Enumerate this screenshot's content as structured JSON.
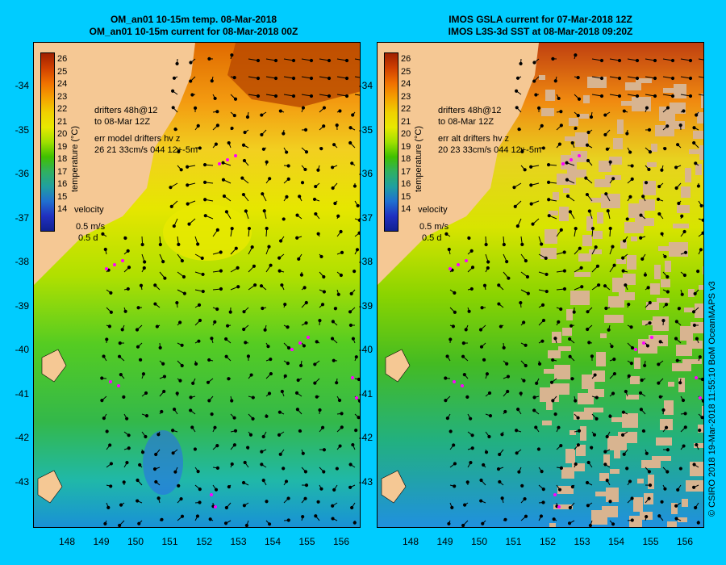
{
  "left_panel": {
    "title_line1": "OM_an01 10-15m temp. 08-Mar-2018",
    "title_line2": "OM_an01 10-15m current for 08-Mar-2018 00Z",
    "legend": {
      "drifters": "drifters 48h@12",
      "date": "to 08-Mar 12Z",
      "err_label": "err model drifters hv z",
      "err_values": "26 21 33cm/s 044 12+-5m"
    }
  },
  "right_panel": {
    "title_line1": "IMOS GSLA current for 07-Mar-2018 12Z",
    "title_line2": "IMOS L3S-3d SST at 08-Mar-2018 09:20Z",
    "legend": {
      "drifters": "drifters 48h@12",
      "date": "to 08-Mar 12Z",
      "err_label": "err alt drifters hv z",
      "err_values": "20 23 33cm/s 044 12+-5m"
    }
  },
  "colorbar": {
    "title": "temperature (°C)",
    "labels": [
      "26",
      "25",
      "24",
      "23",
      "22",
      "21",
      "20",
      "19",
      "18",
      "17",
      "16",
      "15",
      "14"
    ]
  },
  "velocity_legend": {
    "title": "velocity",
    "speed": "0.5 m/s",
    "time": "0.5 d"
  },
  "y_ticks": [
    "-34",
    "-35",
    "-36",
    "-37",
    "-38",
    "-39",
    "-40",
    "-41",
    "-42",
    "-43"
  ],
  "x_ticks": [
    "148",
    "149",
    "150",
    "151",
    "152",
    "153",
    "154",
    "155",
    "156"
  ],
  "credit": "© CSIRO 2018   19-Mar-2018 11:55:10 BoM OceanMAPS v3",
  "colors": {
    "background": "#00ccff",
    "land": "#f5c894",
    "drifter": "#ff00ff"
  }
}
